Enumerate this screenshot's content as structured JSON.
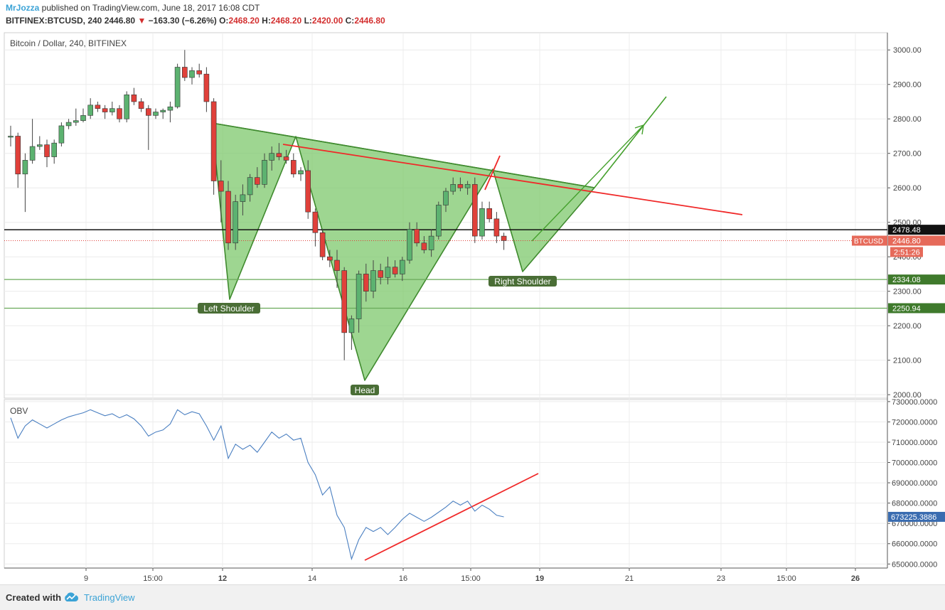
{
  "header": {
    "author": "MrJozza",
    "published": " published on TradingView.com, June 18, 2017 16:08 CDT",
    "symbol": "BITFINEX:BTCUSD, 240",
    "last": "2446.80",
    "change": "−163.30 (−6.26%)",
    "o_label": "O:",
    "o_value": "2468.20",
    "h_label": "H:",
    "h_value": "2468.20",
    "l_label": "L:",
    "l_value": "2420.00",
    "c_label": "C:",
    "c_value": "2446.80"
  },
  "price_pane": {
    "title": "Bitcoin / Dollar, 240, BITFINEX"
  },
  "obv_pane": {
    "title": "OBV"
  },
  "footer": {
    "created_with": "Created with",
    "brand": "TradingView"
  },
  "colors": {
    "up": "#5cb270",
    "down": "#e0403a",
    "pattern_fill": "#7dc86c",
    "pattern_stroke": "#3f8a2e",
    "trend_red": "#f02828",
    "obv_line": "#4a7fc1",
    "obv_badge": "#3a6cb0",
    "level_badge": "#3f7a2c",
    "price_badge": "#e66a5a"
  },
  "chart_data": [
    {
      "type": "candlestick",
      "title": "Bitcoin / Dollar, 240, BITFINEX",
      "x_tick_labels": [
        "9",
        "15:00",
        "12",
        "14",
        "16",
        "15:00",
        "19",
        "21",
        "23",
        "15:00",
        "26"
      ],
      "y_tick_labels": [
        "2000.00",
        "2100.00",
        "2200.00",
        "2300.00",
        "2400.00",
        "2500.00",
        "2600.00",
        "2700.00",
        "2800.00",
        "2900.00",
        "3000.00"
      ],
      "ylim": [
        1990,
        3050
      ],
      "candles": [
        {
          "o": 2750,
          "h": 2780,
          "l": 2720,
          "c": 2750
        },
        {
          "o": 2750,
          "h": 2760,
          "l": 2600,
          "c": 2640
        },
        {
          "o": 2640,
          "h": 2700,
          "l": 2530,
          "c": 2680
        },
        {
          "o": 2680,
          "h": 2800,
          "l": 2670,
          "c": 2720
        },
        {
          "o": 2720,
          "h": 2750,
          "l": 2710,
          "c": 2725
        },
        {
          "o": 2725,
          "h": 2740,
          "l": 2660,
          "c": 2690
        },
        {
          "o": 2690,
          "h": 2740,
          "l": 2670,
          "c": 2730
        },
        {
          "o": 2730,
          "h": 2790,
          "l": 2720,
          "c": 2780
        },
        {
          "o": 2780,
          "h": 2800,
          "l": 2770,
          "c": 2790
        },
        {
          "o": 2790,
          "h": 2830,
          "l": 2780,
          "c": 2795
        },
        {
          "o": 2795,
          "h": 2830,
          "l": 2790,
          "c": 2810
        },
        {
          "o": 2810,
          "h": 2860,
          "l": 2800,
          "c": 2840
        },
        {
          "o": 2840,
          "h": 2850,
          "l": 2820,
          "c": 2830
        },
        {
          "o": 2830,
          "h": 2840,
          "l": 2800,
          "c": 2820
        },
        {
          "o": 2820,
          "h": 2850,
          "l": 2810,
          "c": 2830
        },
        {
          "o": 2830,
          "h": 2840,
          "l": 2790,
          "c": 2800
        },
        {
          "o": 2800,
          "h": 2880,
          "l": 2790,
          "c": 2870
        },
        {
          "o": 2870,
          "h": 2890,
          "l": 2840,
          "c": 2850
        },
        {
          "o": 2850,
          "h": 2860,
          "l": 2820,
          "c": 2830
        },
        {
          "o": 2830,
          "h": 2840,
          "l": 2710,
          "c": 2810
        },
        {
          "o": 2810,
          "h": 2830,
          "l": 2800,
          "c": 2820
        },
        {
          "o": 2820,
          "h": 2830,
          "l": 2800,
          "c": 2825
        },
        {
          "o": 2825,
          "h": 2850,
          "l": 2790,
          "c": 2835
        },
        {
          "o": 2835,
          "h": 2960,
          "l": 2830,
          "c": 2950
        },
        {
          "o": 2950,
          "h": 3000,
          "l": 2910,
          "c": 2920
        },
        {
          "o": 2920,
          "h": 2950,
          "l": 2900,
          "c": 2940
        },
        {
          "o": 2940,
          "h": 2960,
          "l": 2920,
          "c": 2930
        },
        {
          "o": 2930,
          "h": 2950,
          "l": 2820,
          "c": 2850
        },
        {
          "o": 2850,
          "h": 2860,
          "l": 2580,
          "c": 2620
        },
        {
          "o": 2620,
          "h": 2680,
          "l": 2500,
          "c": 2590
        },
        {
          "o": 2590,
          "h": 2620,
          "l": 2420,
          "c": 2440
        },
        {
          "o": 2440,
          "h": 2580,
          "l": 2420,
          "c": 2560
        },
        {
          "o": 2560,
          "h": 2610,
          "l": 2520,
          "c": 2580
        },
        {
          "o": 2580,
          "h": 2640,
          "l": 2560,
          "c": 2630
        },
        {
          "o": 2630,
          "h": 2660,
          "l": 2600,
          "c": 2610
        },
        {
          "o": 2610,
          "h": 2700,
          "l": 2600,
          "c": 2680
        },
        {
          "o": 2680,
          "h": 2720,
          "l": 2650,
          "c": 2700
        },
        {
          "o": 2700,
          "h": 2730,
          "l": 2680,
          "c": 2690
        },
        {
          "o": 2690,
          "h": 2710,
          "l": 2670,
          "c": 2680
        },
        {
          "o": 2680,
          "h": 2700,
          "l": 2630,
          "c": 2640
        },
        {
          "o": 2640,
          "h": 2660,
          "l": 2620,
          "c": 2650
        },
        {
          "o": 2650,
          "h": 2680,
          "l": 2510,
          "c": 2530
        },
        {
          "o": 2530,
          "h": 2540,
          "l": 2430,
          "c": 2470
        },
        {
          "o": 2470,
          "h": 2480,
          "l": 2390,
          "c": 2400
        },
        {
          "o": 2400,
          "h": 2420,
          "l": 2370,
          "c": 2390
        },
        {
          "o": 2390,
          "h": 2420,
          "l": 2310,
          "c": 2360
        },
        {
          "o": 2360,
          "h": 2370,
          "l": 2100,
          "c": 2180
        },
        {
          "o": 2180,
          "h": 2230,
          "l": 2130,
          "c": 2220
        },
        {
          "o": 2220,
          "h": 2360,
          "l": 2180,
          "c": 2350
        },
        {
          "o": 2350,
          "h": 2380,
          "l": 2270,
          "c": 2300
        },
        {
          "o": 2300,
          "h": 2390,
          "l": 2280,
          "c": 2360
        },
        {
          "o": 2360,
          "h": 2380,
          "l": 2320,
          "c": 2340
        },
        {
          "o": 2340,
          "h": 2400,
          "l": 2320,
          "c": 2370
        },
        {
          "o": 2370,
          "h": 2390,
          "l": 2340,
          "c": 2350
        },
        {
          "o": 2350,
          "h": 2400,
          "l": 2330,
          "c": 2390
        },
        {
          "o": 2390,
          "h": 2500,
          "l": 2380,
          "c": 2480
        },
        {
          "o": 2480,
          "h": 2500,
          "l": 2430,
          "c": 2440
        },
        {
          "o": 2440,
          "h": 2460,
          "l": 2410,
          "c": 2420
        },
        {
          "o": 2420,
          "h": 2480,
          "l": 2400,
          "c": 2460
        },
        {
          "o": 2460,
          "h": 2560,
          "l": 2450,
          "c": 2550
        },
        {
          "o": 2550,
          "h": 2600,
          "l": 2530,
          "c": 2590
        },
        {
          "o": 2590,
          "h": 2630,
          "l": 2580,
          "c": 2610
        },
        {
          "o": 2610,
          "h": 2630,
          "l": 2590,
          "c": 2600
        },
        {
          "o": 2600,
          "h": 2620,
          "l": 2580,
          "c": 2610
        },
        {
          "o": 2610,
          "h": 2630,
          "l": 2440,
          "c": 2460
        },
        {
          "o": 2460,
          "h": 2560,
          "l": 2450,
          "c": 2540
        },
        {
          "o": 2540,
          "h": 2560,
          "l": 2500,
          "c": 2510
        },
        {
          "o": 2510,
          "h": 2530,
          "l": 2440,
          "c": 2460
        },
        {
          "o": 2460,
          "h": 2470,
          "l": 2420,
          "c": 2447
        }
      ],
      "horizontal_levels": [
        {
          "price": 2478.48,
          "label": "2478.48",
          "style": "black"
        },
        {
          "price": 2446.8,
          "label": "2446.80",
          "prefix": "BTCUSD",
          "countdown": "2:51:26",
          "style": "last-price"
        },
        {
          "price": 2334.08,
          "label": "2334.08",
          "style": "green"
        },
        {
          "price": 2250.94,
          "label": "2250.94",
          "style": "green"
        }
      ],
      "annotations": [
        "Left Shoulder",
        "Head",
        "Right Shoulder"
      ]
    },
    {
      "type": "line",
      "title": "OBV",
      "y_tick_labels": [
        "650000.0000",
        "660000.0000",
        "670000.0000",
        "680000.0000",
        "690000.0000",
        "700000.0000",
        "710000.0000",
        "720000.0000",
        "730000.0000"
      ],
      "ylim": [
        648000,
        731000
      ],
      "last_value": "673225.3886",
      "series": [
        {
          "values": [
            722000,
            712000,
            718000,
            721000,
            719000,
            717000,
            719000,
            721000,
            722500,
            723500,
            724500,
            726000,
            724500,
            723000,
            724000,
            722000,
            723500,
            721500,
            718000,
            713000,
            715000,
            716000,
            719000,
            726000,
            723500,
            725000,
            724000,
            718000,
            711000,
            718000,
            702000,
            709000,
            706500,
            708500,
            705000,
            710000,
            715000,
            712000,
            714000,
            711000,
            712000,
            700000,
            694000,
            684000,
            688000,
            674000,
            668000,
            652500,
            662000,
            668000,
            666000,
            668000,
            664500,
            668000,
            672000,
            675000,
            673000,
            671000,
            673000,
            675500,
            678000,
            681000,
            679000,
            681000,
            676000,
            679000,
            677000,
            674000,
            673225
          ]
        }
      ]
    }
  ]
}
